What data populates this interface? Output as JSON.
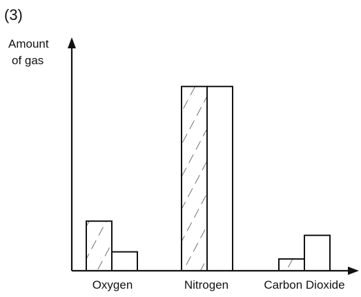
{
  "question_number": "(3)",
  "chart_data": {
    "type": "bar",
    "ylabel": "Amount of gas",
    "ylabel_lines": [
      "Amount",
      "of gas"
    ],
    "xlabel": "",
    "categories": [
      "Oxygen",
      "Nitrogen",
      "Carbon Dioxide"
    ],
    "series": [
      {
        "pattern": "hatched",
        "values": [
          21,
          78,
          5
        ]
      },
      {
        "pattern": "plain",
        "values": [
          8,
          78,
          15
        ]
      }
    ],
    "ylim": [
      0,
      100
    ],
    "grid": false,
    "tick_labels_y": false,
    "legend": "none"
  }
}
